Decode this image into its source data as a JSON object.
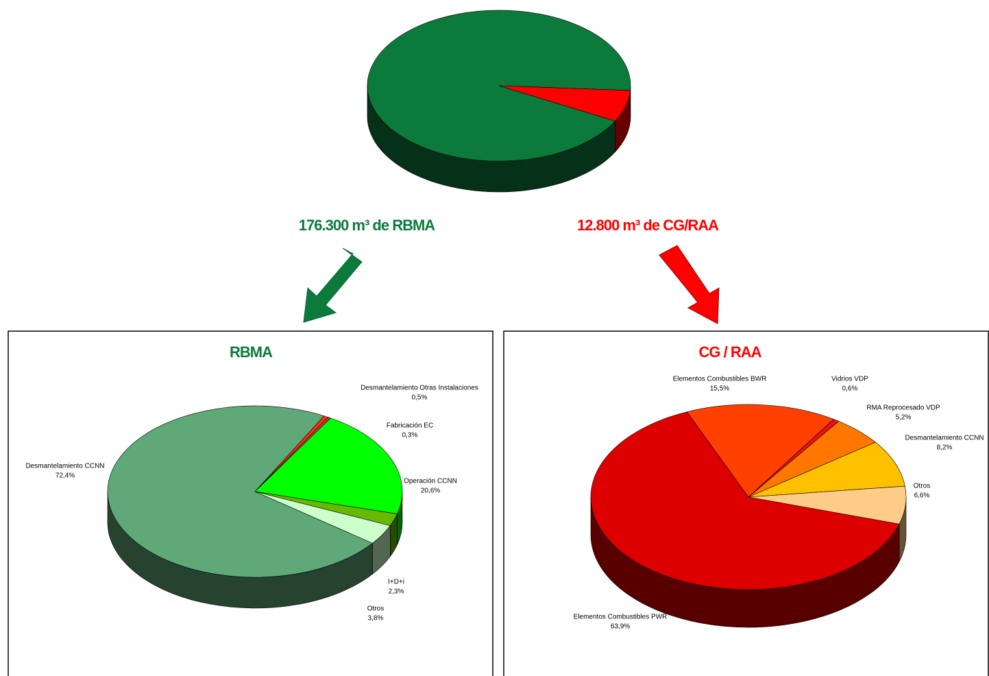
{
  "chart_data": [
    {
      "type": "pie",
      "values": [
        176300,
        12800
      ],
      "value_labels": [
        "176.300 m³ de RBMA",
        "12.800 m³ de CG/RAA"
      ],
      "colors": [
        "#0b7a3b",
        "#ff0000"
      ]
    },
    {
      "type": "pie",
      "title": "RBMA",
      "categories": [
        "Desmantelamiento Otras Instalaciones",
        "Fabricación EC",
        "Operación CCNN",
        "I+D+i",
        "Otros",
        "Desmantelamiento CCNN"
      ],
      "values": [
        0.5,
        0.3,
        20.6,
        2.3,
        3.8,
        72.4
      ],
      "value_labels": [
        "0,5%",
        "0,3%",
        "20,6%",
        "2,3%",
        "3,8%",
        "72,4%"
      ],
      "colors": [
        "#ff3300",
        "#cc3366",
        "#00ff00",
        "#66bb00",
        "#ccffcc",
        "#5fa878"
      ]
    },
    {
      "type": "pie",
      "title": "CG / RAA",
      "categories": [
        "Elementos Combustibles BWR",
        "Vidrios VDP",
        "RMA Reprocesado VDP",
        "Desmantelamiento CCNN",
        "Otros",
        "Elementos Combustibles PWR"
      ],
      "values": [
        15.5,
        0.6,
        5.2,
        8.2,
        6.6,
        63.9
      ],
      "value_labels": [
        "15,5%",
        "0,6%",
        "5,2%",
        "8,2%",
        "6,6%",
        "63,9%"
      ],
      "colors": [
        "#ff4000",
        "#ee1111",
        "#ff7700",
        "#ffc000",
        "#ffcc88",
        "#dd0000"
      ]
    }
  ]
}
